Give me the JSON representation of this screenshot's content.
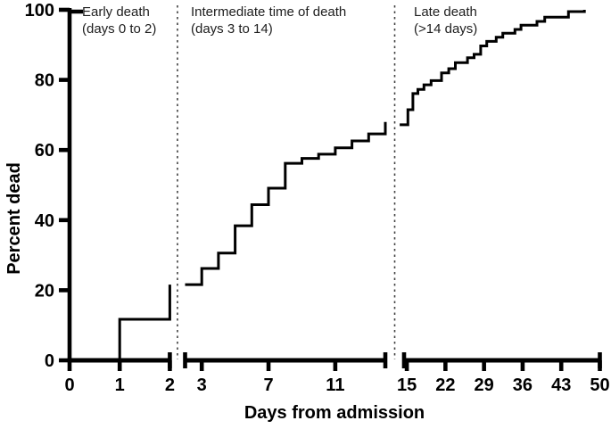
{
  "chart_data": {
    "type": "step",
    "title": "",
    "ylabel": "Percent dead",
    "xlabel": "Days from admission",
    "ylim": [
      0,
      100
    ],
    "yticks": [
      0,
      20,
      40,
      60,
      80,
      100
    ],
    "grid": false,
    "legend": "none",
    "curve_color": "#000000",
    "axis_color": "#000000",
    "separator_color": "#404040",
    "separator_style": "dashed",
    "panels": [
      {
        "name": "early",
        "title_lines": [
          "Early death",
          "(days 0 to 2)"
        ],
        "day_range": [
          0,
          2
        ],
        "xticks": [
          0,
          1,
          2
        ],
        "cap_start": false,
        "cap_end": true,
        "steps": [
          [
            0,
            0
          ],
          [
            1,
            11.7
          ],
          [
            2,
            21.6
          ]
        ]
      },
      {
        "name": "intermediate",
        "title_lines": [
          "Intermediate time of death",
          "(days 3 to 14)"
        ],
        "day_range": [
          2,
          14
        ],
        "xticks": [
          3,
          7,
          11
        ],
        "cap_start": true,
        "cap_end": true,
        "steps": [
          [
            2,
            21.6
          ],
          [
            3,
            26.2
          ],
          [
            4,
            30.6
          ],
          [
            5,
            38.4
          ],
          [
            6,
            44.4
          ],
          [
            7,
            49.1
          ],
          [
            8,
            56.2
          ],
          [
            9,
            57.6
          ],
          [
            10,
            58.8
          ],
          [
            11,
            60.6
          ],
          [
            12,
            62.6
          ],
          [
            13,
            64.6
          ],
          [
            14,
            68.0
          ]
        ]
      },
      {
        "name": "late",
        "title_lines": [
          "Late death",
          "(>14 days)"
        ],
        "day_range": [
          14.5,
          50
        ],
        "xticks": [
          15,
          22,
          29,
          36,
          43,
          50
        ],
        "cap_start": true,
        "cap_end": true,
        "steps": [
          [
            13.7,
            67.2
          ],
          [
            15.2,
            71.5
          ],
          [
            16.1,
            76.1
          ],
          [
            17,
            77.3
          ],
          [
            18.1,
            78.6
          ],
          [
            19.4,
            79.8
          ],
          [
            21.3,
            82.0
          ],
          [
            22.6,
            83.2
          ],
          [
            23.8,
            84.9
          ],
          [
            26,
            86.3
          ],
          [
            27.2,
            87.3
          ],
          [
            28.4,
            89.7
          ],
          [
            29.5,
            91.0
          ],
          [
            31.2,
            92.2
          ],
          [
            32.4,
            93.3
          ],
          [
            34.6,
            94.4
          ],
          [
            35.7,
            95.6
          ],
          [
            38.6,
            96.7
          ],
          [
            40,
            97.9
          ],
          [
            44.3,
            99.5
          ],
          [
            47.2,
            100
          ]
        ]
      }
    ]
  }
}
